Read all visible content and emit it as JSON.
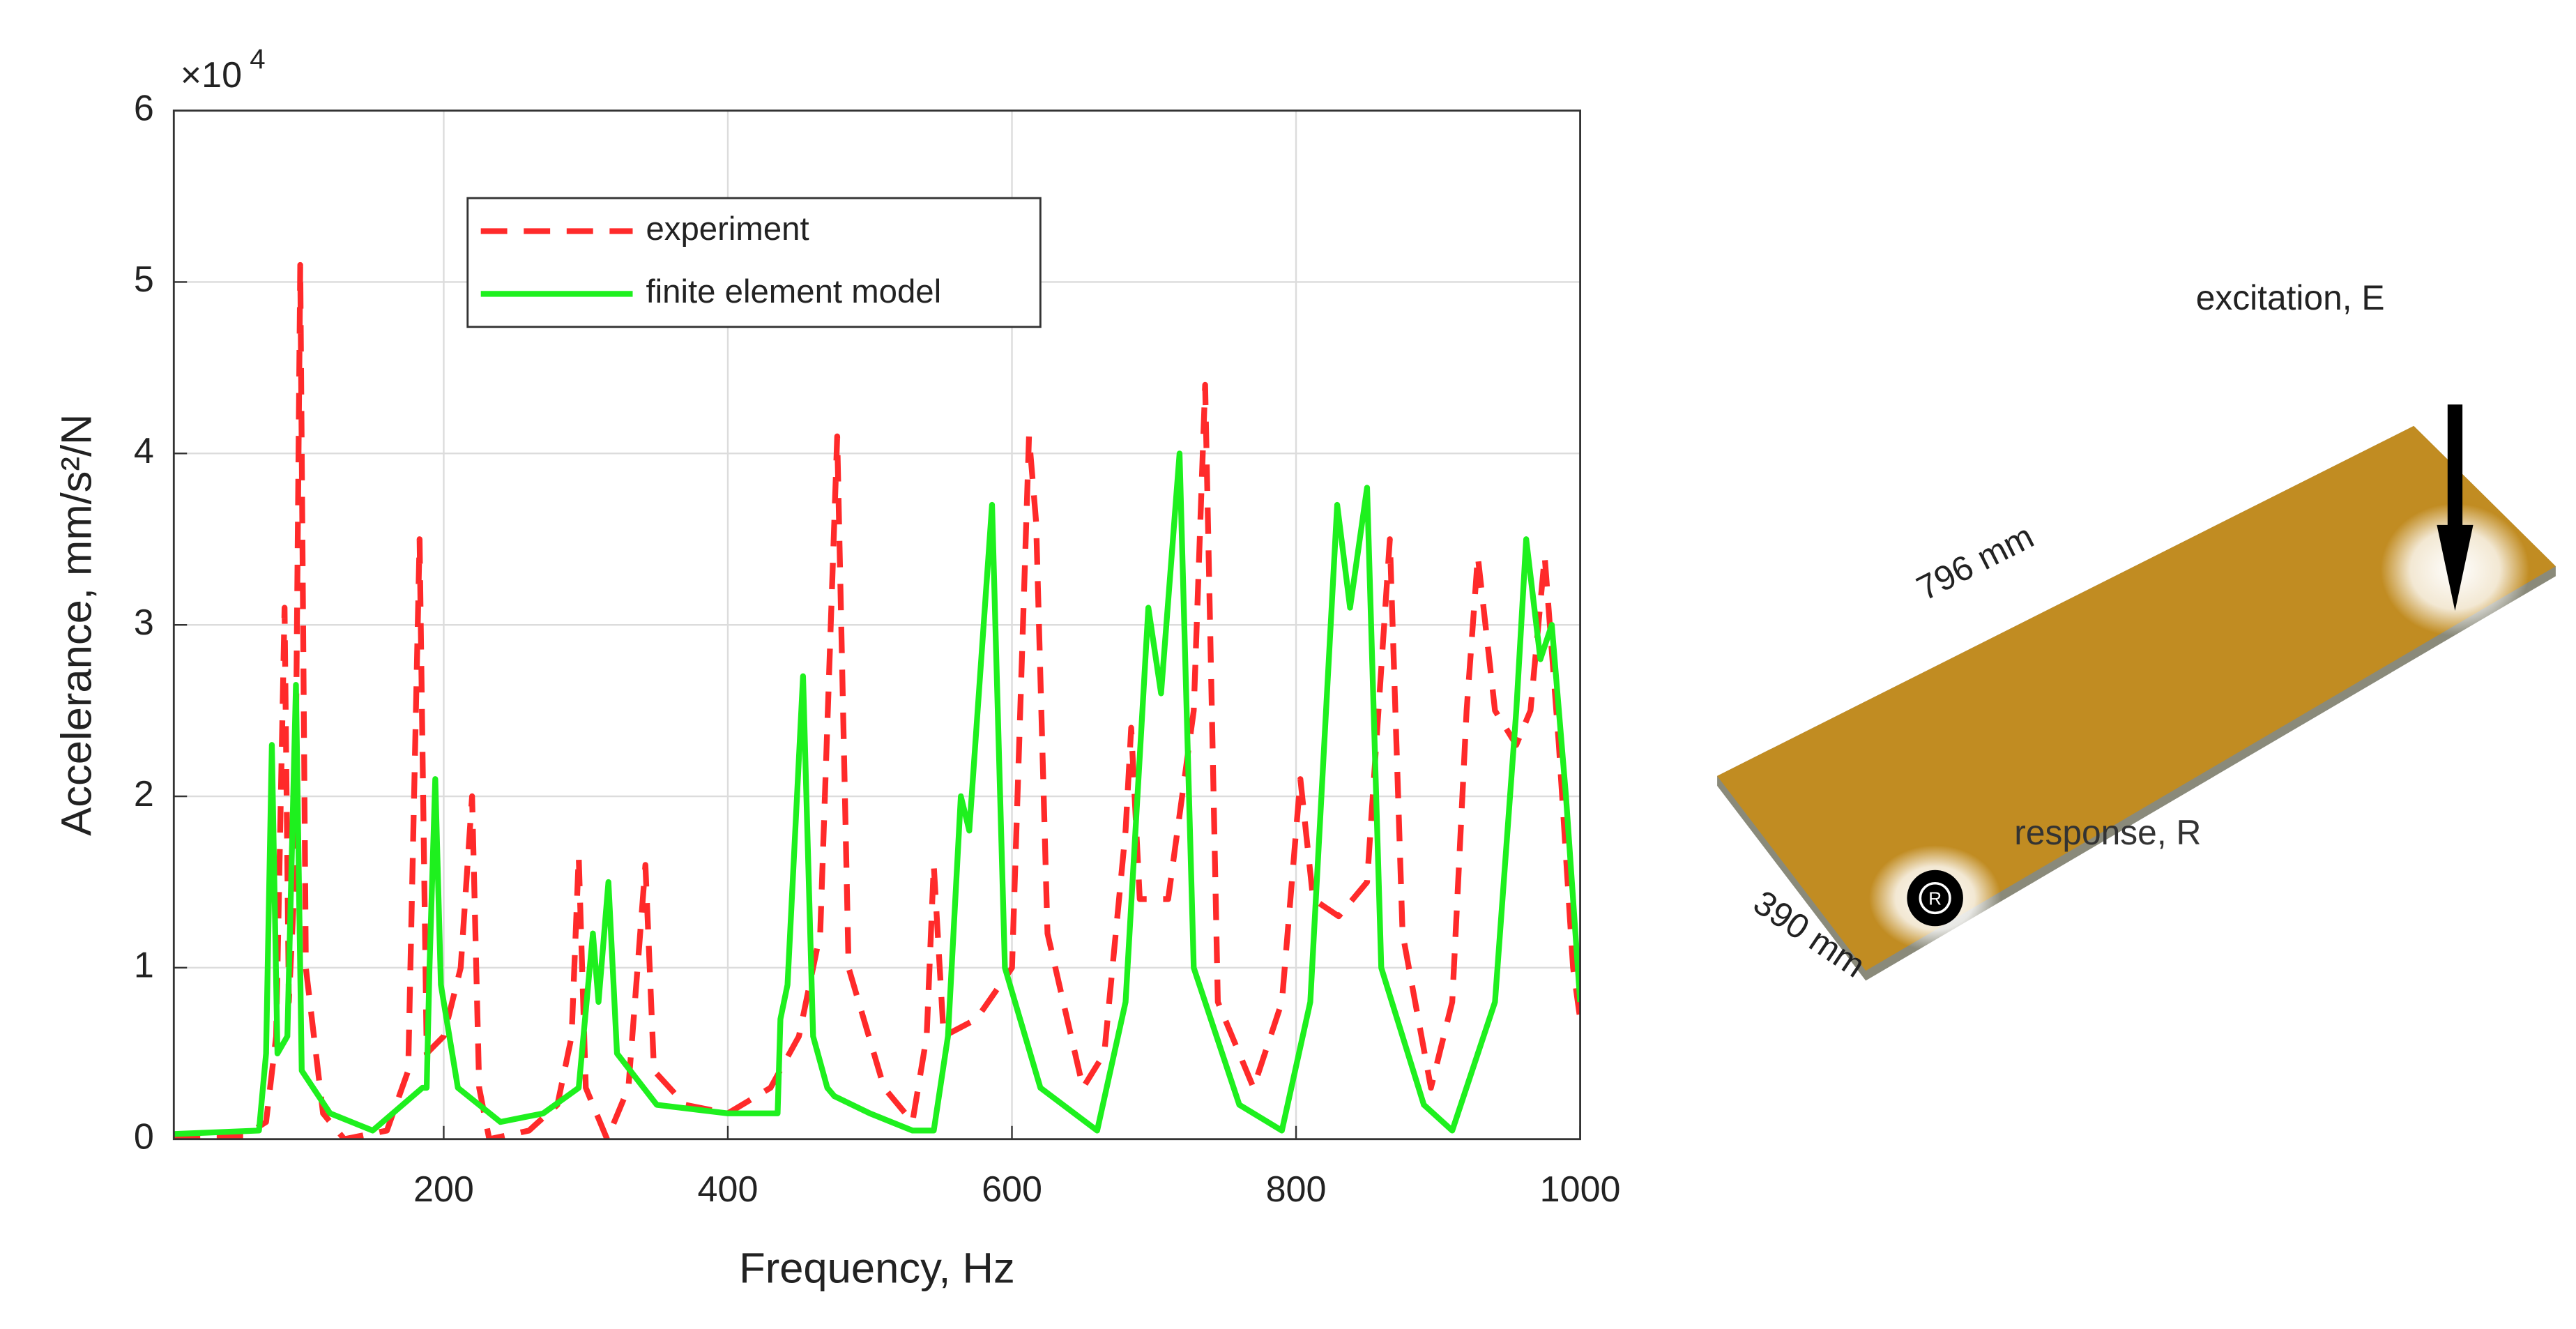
{
  "chart_data": {
    "type": "line",
    "xlabel": "Frequency, Hz",
    "ylabel": "Accelerance, mm/s²/N",
    "y_scale_label": "×10",
    "y_scale_exponent": "4",
    "xlim": [
      10,
      1000
    ],
    "xticks": [
      200,
      400,
      600,
      800,
      1000
    ],
    "ylim": [
      0,
      6
    ],
    "yticks": [
      0,
      1,
      2,
      3,
      4,
      5,
      6
    ],
    "grid": true,
    "legend": "top",
    "series": [
      {
        "name": "experiment",
        "color": "#ff2a2a",
        "dash": true,
        "x": [
          10,
          60,
          75,
          82,
          88,
          91,
          95,
          99,
          103,
          115,
          130,
          160,
          175,
          183,
          188,
          200,
          212,
          220,
          225,
          232,
          260,
          280,
          290,
          295,
          300,
          315,
          330,
          342,
          348,
          370,
          400,
          430,
          450,
          465,
          477,
          485,
          510,
          530,
          540,
          545,
          552,
          575,
          600,
          612,
          617,
          625,
          650,
          665,
          680,
          684,
          690,
          710,
          728,
          736,
          745,
          770,
          790,
          803,
          812,
          830,
          850,
          866,
          875,
          895,
          910,
          920,
          928,
          940,
          955,
          965,
          975,
          985,
          995,
          1000
        ],
        "values": [
          0.02,
          0.02,
          0.1,
          0.6,
          3.1,
          0.8,
          1.5,
          5.1,
          1.0,
          0.15,
          0.0,
          0.05,
          0.4,
          3.5,
          0.5,
          0.6,
          1.0,
          2.0,
          0.3,
          0.0,
          0.05,
          0.2,
          0.6,
          1.65,
          0.3,
          0.0,
          0.3,
          1.6,
          0.4,
          0.2,
          0.15,
          0.3,
          0.6,
          1.2,
          4.1,
          1.0,
          0.3,
          0.1,
          0.6,
          1.6,
          0.6,
          0.7,
          1.0,
          4.1,
          3.6,
          1.2,
          0.3,
          0.5,
          1.8,
          2.4,
          1.4,
          1.4,
          2.5,
          4.4,
          0.8,
          0.3,
          0.8,
          2.1,
          1.4,
          1.3,
          1.5,
          3.5,
          1.2,
          0.3,
          0.8,
          2.5,
          3.4,
          2.5,
          2.3,
          2.5,
          3.4,
          2.3,
          1.0,
          0.7
        ]
      },
      {
        "name": "finite element model",
        "color": "#1ef01e",
        "dash": false,
        "x": [
          10,
          70,
          75,
          79,
          83,
          90,
          96,
          100,
          120,
          150,
          185,
          188,
          190,
          194,
          198,
          210,
          240,
          270,
          295,
          305,
          309,
          316,
          322,
          350,
          400,
          435,
          437,
          442,
          453,
          460,
          470,
          475,
          500,
          530,
          545,
          555,
          564,
          570,
          586,
          595,
          620,
          660,
          680,
          696,
          705,
          718,
          728,
          760,
          790,
          810,
          829,
          838,
          850,
          860,
          890,
          910,
          940,
          955,
          962,
          972,
          980,
          990,
          1000
        ],
        "values": [
          0.03,
          0.05,
          0.5,
          2.3,
          0.5,
          0.6,
          2.65,
          0.4,
          0.15,
          0.05,
          0.3,
          0.3,
          1.0,
          2.1,
          0.9,
          0.3,
          0.1,
          0.15,
          0.3,
          1.2,
          0.8,
          1.5,
          0.5,
          0.2,
          0.15,
          0.15,
          0.7,
          0.9,
          2.7,
          0.6,
          0.3,
          0.25,
          0.15,
          0.05,
          0.05,
          0.6,
          2.0,
          1.8,
          3.7,
          1.0,
          0.3,
          0.05,
          0.8,
          3.1,
          2.6,
          4.0,
          1.0,
          0.2,
          0.05,
          0.8,
          3.7,
          3.1,
          3.8,
          1.0,
          0.2,
          0.05,
          0.8,
          2.5,
          3.5,
          2.8,
          3.0,
          2.0,
          0.8
        ]
      }
    ]
  },
  "diagram": {
    "excitation": "excitation, E",
    "length": "796 mm",
    "width": "390 mm",
    "response": "response, R",
    "response_marker": "R"
  }
}
